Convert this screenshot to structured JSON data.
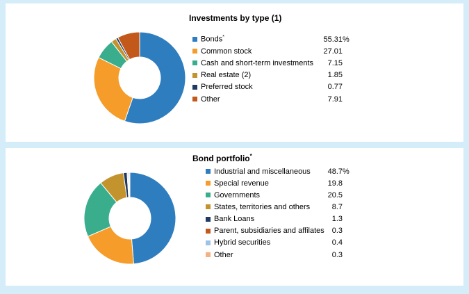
{
  "page": {
    "background_color": "#D5EDF8",
    "card_color": "#FFFFFF"
  },
  "chart_data": [
    {
      "type": "pie",
      "subtype": "donut",
      "title": "Investments by type (1)",
      "title_sup": "",
      "legend_position": "right",
      "start_angle_deg": 0,
      "direction": "clockwise",
      "items": [
        {
          "label": "Bonds",
          "label_sup": "*",
          "value": 55.31,
          "value_label": "55.31",
          "unit": "%",
          "color": "#2E7DBF"
        },
        {
          "label": "Common stock",
          "label_sup": "",
          "value": 27.01,
          "value_label": "27.01",
          "unit": "",
          "color": "#F59C2A"
        },
        {
          "label": "Cash and short-term investments",
          "label_sup": "",
          "value": 7.15,
          "value_label": "7.15",
          "unit": "",
          "color": "#3AAE8C"
        },
        {
          "label": "Real estate (2)",
          "label_sup": "",
          "value": 1.85,
          "value_label": "1.85",
          "unit": "",
          "color": "#C3932E"
        },
        {
          "label": "Preferred stock",
          "label_sup": "",
          "value": 0.77,
          "value_label": "0.77",
          "unit": "",
          "color": "#1F3A63"
        },
        {
          "label": "Other",
          "label_sup": "",
          "value": 7.91,
          "value_label": "7.91",
          "unit": "",
          "color": "#C2591B"
        }
      ]
    },
    {
      "type": "pie",
      "subtype": "donut",
      "title": "Bond portfolio",
      "title_sup": "*",
      "legend_position": "right",
      "start_angle_deg": 0,
      "direction": "clockwise",
      "items": [
        {
          "label": "Industrial and miscellaneous",
          "label_sup": "",
          "value": 48.7,
          "value_label": "48.7",
          "unit": "%",
          "color": "#2E7DBF"
        },
        {
          "label": "Special revenue",
          "label_sup": "",
          "value": 19.8,
          "value_label": "19.8",
          "unit": "",
          "color": "#F59C2A"
        },
        {
          "label": "Governments",
          "label_sup": "",
          "value": 20.5,
          "value_label": "20.5",
          "unit": "",
          "color": "#3AAE8C"
        },
        {
          "label": "States, territories and others",
          "label_sup": "",
          "value": 8.7,
          "value_label": "8.7",
          "unit": "",
          "color": "#C3932E"
        },
        {
          "label": "Bank Loans",
          "label_sup": "",
          "value": 1.3,
          "value_label": "1.3",
          "unit": "",
          "color": "#1F3A63"
        },
        {
          "label": "Parent, subsidiaries and affilates",
          "label_sup": "",
          "value": 0.3,
          "value_label": "0.3",
          "unit": "",
          "color": "#C2591B"
        },
        {
          "label": "Hybrid securities",
          "label_sup": "",
          "value": 0.4,
          "value_label": "0.4",
          "unit": "",
          "color": "#9DC3E6"
        },
        {
          "label": "Other",
          "label_sup": "",
          "value": 0.3,
          "value_label": "0.3",
          "unit": "",
          "color": "#F4B183"
        }
      ]
    }
  ]
}
